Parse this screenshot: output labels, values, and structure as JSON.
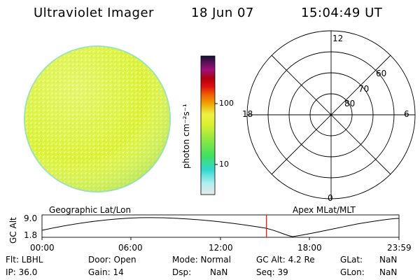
{
  "header": {
    "title": "Ultraviolet Imager",
    "date": "18 Jun 07",
    "time": "15:04:49 UT"
  },
  "colorbar": {
    "ylabel": "photon cm⁻²s⁻¹",
    "scale": "log",
    "ticks": [
      "100",
      "10"
    ]
  },
  "polar": {
    "mlt_labels": {
      "top": "12",
      "left": "18",
      "right": "6",
      "bottom": "0"
    },
    "lat_labels": [
      "60",
      "70",
      "80"
    ]
  },
  "timeline": {
    "left_label": "Geographic Lat/Lon",
    "right_label": "Apex MLat/MLT",
    "ylabel": "GC Alt",
    "y_top": "9.0",
    "y_bottom": "1.8",
    "x_ticks": [
      "00:00",
      "06:00",
      "12:00",
      "18:00",
      "23:59"
    ],
    "current_time": "15:04:49",
    "colors": {
      "curve": "#000000",
      "marker": "#ff0000"
    }
  },
  "info": {
    "row1": {
      "flt": "Flt: LBHL",
      "door": "Door: Open",
      "mode": "Mode: Normal",
      "gcalt": "GC Alt: 4.2 Re",
      "glat_label": "GLat:",
      "glat_val": "NaN"
    },
    "row2": {
      "ip": "IP: 36.0",
      "gain": "Gain: 14",
      "dsp_label": "Dsp:",
      "dsp_val": "NaN",
      "seq": "Seq: 39",
      "glon_label": "GLon:",
      "glon_val": "NaN"
    }
  },
  "colors": {
    "disk_fill": "#dff536",
    "disk_edge": "#a6e8a8",
    "colorbar_stops": [
      "#e8e8e8",
      "#b0f0f0",
      "#30d8d0",
      "#40e060",
      "#90e840",
      "#d8f030",
      "#f0f040",
      "#f0a000",
      "#f06000",
      "#e01010",
      "#b00010",
      "#a0107a",
      "#60105a",
      "#101030"
    ]
  }
}
